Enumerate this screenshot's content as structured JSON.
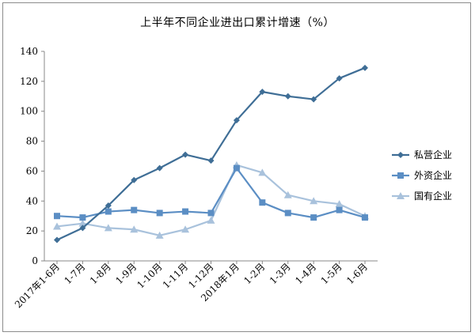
{
  "chart_data": {
    "type": "line",
    "title": "上半年不同企业进出口累计增速（%）",
    "xlabel": "",
    "ylabel": "",
    "ylim": [
      0,
      140
    ],
    "yticks": [
      0,
      20,
      40,
      60,
      80,
      100,
      120,
      140
    ],
    "grid": false,
    "legend": "right",
    "categories": [
      "2017年1-6月",
      "1-7月",
      "1-8月",
      "1-9月",
      "1-10月",
      "1-11月",
      "1-12月",
      "2018年1月",
      "1-2月",
      "1-3月",
      "1-4月",
      "1-5月",
      "1-6月"
    ],
    "series": [
      {
        "name": "私营企业",
        "color": "#3f6e96",
        "marker": "diamond",
        "values": [
          14,
          22,
          37,
          54,
          62,
          71,
          67,
          94,
          113,
          110,
          108,
          122,
          129
        ]
      },
      {
        "name": "外资企业",
        "color": "#5b8ec4",
        "marker": "square",
        "values": [
          30,
          29,
          33,
          34,
          32,
          33,
          32,
          62,
          39,
          32,
          29,
          34,
          29
        ]
      },
      {
        "name": "国有企业",
        "color": "#a9c2dc",
        "marker": "triangle",
        "values": [
          23,
          25,
          22,
          21,
          17,
          21,
          27,
          64,
          59,
          44,
          40,
          38,
          30
        ]
      }
    ]
  }
}
